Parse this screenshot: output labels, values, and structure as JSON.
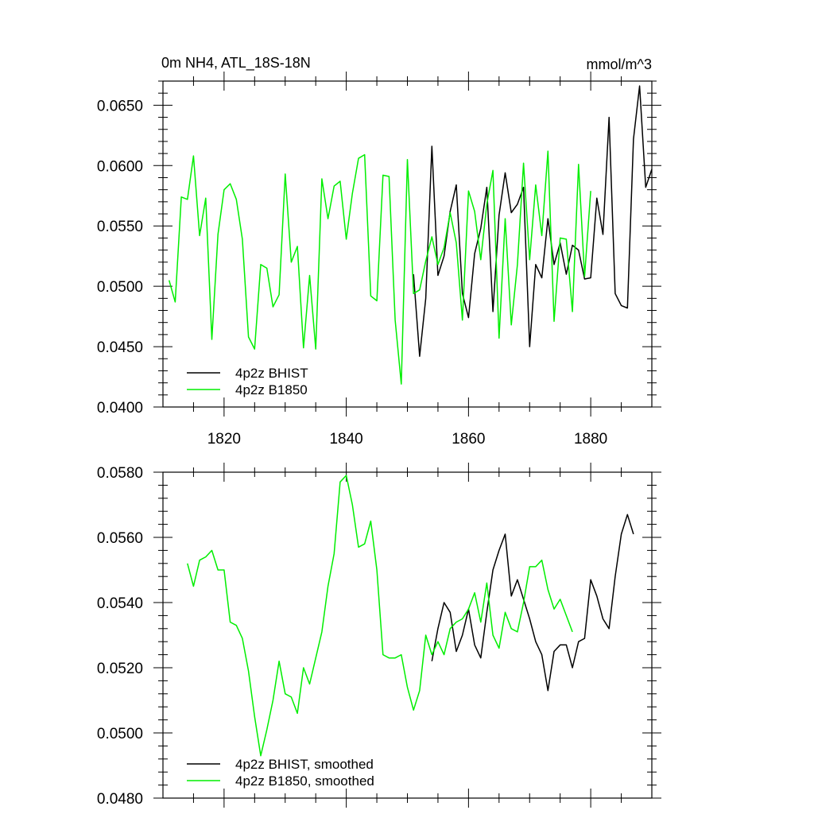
{
  "chart_data": [
    {
      "type": "line",
      "title": "0m NH4, ATL_18S-18N",
      "units": "mmol/m^3",
      "xlim": [
        1810,
        1890
      ],
      "ylim": [
        0.04,
        0.067
      ],
      "x_ticks": [
        1820,
        1840,
        1860,
        1880
      ],
      "x_tick_labels": [
        "1820",
        "1840",
        "1860",
        "1880"
      ],
      "y_ticks": [
        0.04,
        0.045,
        0.05,
        0.055,
        0.06,
        0.065
      ],
      "y_tick_labels": [
        "0.0400",
        "0.0450",
        "0.0500",
        "0.0550",
        "0.0600",
        "0.0650"
      ],
      "legend_position": "bottom-left",
      "series": [
        {
          "name": "4p2z BHIST",
          "color": "#000000",
          "x0": 1851,
          "values": [
            0.051,
            0.0442,
            0.049,
            0.0616,
            0.0509,
            0.0525,
            0.0562,
            0.0584,
            0.0494,
            0.0474,
            0.0527,
            0.0548,
            0.0582,
            0.0479,
            0.0559,
            0.0594,
            0.0561,
            0.0568,
            0.0582,
            0.045,
            0.0518,
            0.0507,
            0.0556,
            0.0518,
            0.0536,
            0.051,
            0.0534,
            0.053,
            0.0506,
            0.0507,
            0.0573,
            0.0543,
            0.064,
            0.0494,
            0.0484,
            0.0482,
            0.0622,
            0.0666,
            0.0582,
            0.0597
          ]
        },
        {
          "name": "4p2z B1850",
          "color": "#00ee00",
          "x0": 1811,
          "values": [
            0.0505,
            0.0487,
            0.0574,
            0.0572,
            0.0608,
            0.0542,
            0.0573,
            0.0456,
            0.0543,
            0.058,
            0.0585,
            0.0572,
            0.0539,
            0.0458,
            0.0448,
            0.0518,
            0.0515,
            0.0483,
            0.0493,
            0.0593,
            0.052,
            0.0533,
            0.0449,
            0.0509,
            0.0448,
            0.0589,
            0.0556,
            0.0583,
            0.0587,
            0.0539,
            0.0577,
            0.0606,
            0.0609,
            0.0492,
            0.0488,
            0.0592,
            0.0591,
            0.0472,
            0.0419,
            0.0605,
            0.0494,
            0.0497,
            0.0521,
            0.0541,
            0.0518,
            0.0532,
            0.0561,
            0.0536,
            0.0472,
            0.0579,
            0.0562,
            0.0522,
            0.0568,
            0.0596,
            0.0457,
            0.0556,
            0.0468,
            0.0518,
            0.0602,
            0.0522,
            0.0584,
            0.0542,
            0.0612,
            0.0471,
            0.054,
            0.0539,
            0.0479,
            0.0601,
            0.0508,
            0.0579
          ]
        }
      ]
    },
    {
      "type": "line",
      "xlim": [
        1810,
        1890
      ],
      "ylim": [
        0.048,
        0.058
      ],
      "x_ticks": [
        1820,
        1840,
        1860,
        1880
      ],
      "y_ticks": [
        0.048,
        0.05,
        0.052,
        0.054,
        0.056,
        0.058
      ],
      "y_tick_labels": [
        "0.0480",
        "0.0500",
        "0.0520",
        "0.0540",
        "0.0560",
        "0.0580"
      ],
      "legend_position": "bottom-left",
      "series": [
        {
          "name": "4p2z BHIST, smoothed",
          "color": "#000000",
          "x0": 1854,
          "values": [
            0.0522,
            0.0532,
            0.054,
            0.0537,
            0.0525,
            0.053,
            0.0538,
            0.0527,
            0.0523,
            0.0537,
            0.055,
            0.0556,
            0.0561,
            0.0542,
            0.0547,
            0.0541,
            0.0535,
            0.0528,
            0.0524,
            0.0513,
            0.0525,
            0.0527,
            0.0527,
            0.052,
            0.0528,
            0.0529,
            0.0547,
            0.0542,
            0.0535,
            0.0532,
            0.0548,
            0.0561,
            0.0567,
            0.0561
          ]
        },
        {
          "name": "4p2z B1850, smoothed",
          "color": "#00ee00",
          "x0": 1814,
          "values": [
            0.0552,
            0.0545,
            0.0553,
            0.0554,
            0.0556,
            0.055,
            0.055,
            0.0534,
            0.0533,
            0.0529,
            0.0519,
            0.0505,
            0.0493,
            0.0501,
            0.051,
            0.0522,
            0.0512,
            0.0511,
            0.0506,
            0.052,
            0.0515,
            0.0523,
            0.0531,
            0.0545,
            0.0555,
            0.0577,
            0.0579,
            0.057,
            0.0557,
            0.0558,
            0.0565,
            0.055,
            0.0524,
            0.0523,
            0.0523,
            0.0524,
            0.0514,
            0.0507,
            0.0513,
            0.053,
            0.0524,
            0.0528,
            0.0524,
            0.0532,
            0.0534,
            0.0535,
            0.0538,
            0.0543,
            0.0534,
            0.0546,
            0.053,
            0.0526,
            0.0537,
            0.0532,
            0.0531,
            0.054,
            0.0551,
            0.0551,
            0.0553,
            0.0544,
            0.0538,
            0.0541,
            0.0536,
            0.0531
          ]
        }
      ]
    }
  ]
}
